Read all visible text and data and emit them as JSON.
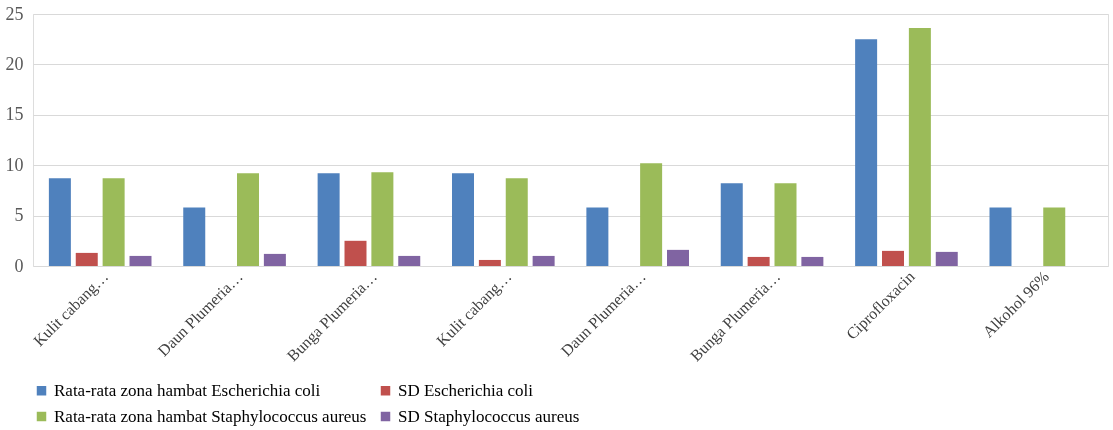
{
  "chart_data": {
    "type": "bar",
    "categories": [
      "Kulit cabang…",
      "Daun Plumeria…",
      "Bunga Plumeria…",
      "Kulit cabang…",
      "Daun Plumeria…",
      "Bunga Plumeria…",
      "Ciprofloxacin",
      "Alkohol 96%"
    ],
    "series": [
      {
        "name": "Rata-rata zona hambat Escherichia coli",
        "color": "#4f81bd",
        "values": [
          8.7,
          5.8,
          9.2,
          9.2,
          5.8,
          8.2,
          22.5,
          5.8
        ]
      },
      {
        "name": "SD Escherichia coli",
        "color": "#c0504d",
        "values": [
          1.3,
          null,
          2.5,
          0.6,
          null,
          0.9,
          1.5,
          null
        ]
      },
      {
        "name": "Rata-rata zona hambat Staphylococcus aureus",
        "color": "#9bbb59",
        "values": [
          8.7,
          9.2,
          9.3,
          8.7,
          10.2,
          8.2,
          23.6,
          5.8
        ]
      },
      {
        "name": "SD Staphylococcus aureus",
        "color": "#8064a2",
        "values": [
          1.0,
          1.2,
          1.0,
          1.0,
          1.6,
          0.9,
          1.4,
          null
        ]
      }
    ],
    "ylim": [
      0,
      25
    ],
    "yticks": [
      0,
      5,
      10,
      15,
      20,
      25
    ],
    "grid": "y",
    "legend": "bottom"
  }
}
